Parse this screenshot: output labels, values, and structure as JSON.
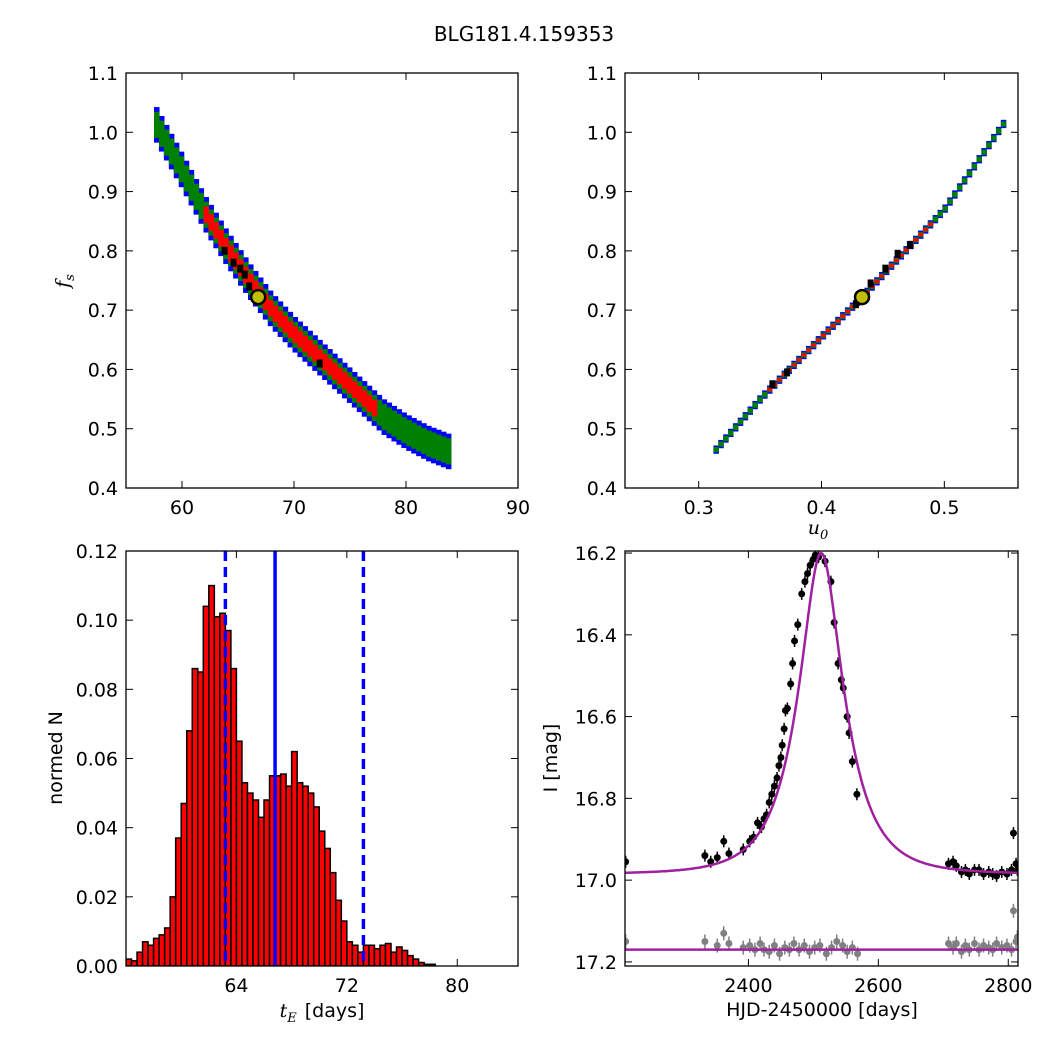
{
  "title": "BLG181.4.159353",
  "colors": {
    "blue": "#0000ff",
    "green": "#008000",
    "red": "#ff0000",
    "black": "#000000",
    "marker_edge": "#000000",
    "marker_face": "#bfbf00",
    "fit": "#a020a0",
    "resid": "#808080"
  },
  "chart_data": [
    {
      "id": "panel_tE_fs",
      "type": "heatmap",
      "description_levels": [
        "blue",
        "green",
        "red",
        "black"
      ],
      "xlabel": "",
      "ylabel": "f_s",
      "xlim": [
        55,
        90
      ],
      "ylim": [
        0.4,
        1.1
      ],
      "xticks": [
        60,
        70,
        80,
        90
      ],
      "yticks": [
        0.4,
        0.5,
        0.6,
        0.7,
        0.8,
        0.9,
        1.0,
        1.1
      ],
      "band_center": [
        [
          57.5,
          1.02
        ],
        [
          60,
          0.935
        ],
        [
          62,
          0.865
        ],
        [
          64,
          0.805
        ],
        [
          66,
          0.75
        ],
        [
          68,
          0.7
        ],
        [
          70,
          0.66
        ],
        [
          72,
          0.625
        ],
        [
          74,
          0.59
        ],
        [
          76,
          0.555
        ],
        [
          78,
          0.52
        ],
        [
          80,
          0.495
        ],
        [
          82,
          0.475
        ],
        [
          84,
          0.46
        ]
      ],
      "band_halfwidth": {
        "blue": 0.03,
        "green": 0.022,
        "red": 0.014
      },
      "red_range": [
        61.5,
        77
      ],
      "black_points": [
        [
          63.8,
          0.8
        ],
        [
          64.6,
          0.78
        ],
        [
          65.2,
          0.77
        ],
        [
          65.6,
          0.76
        ],
        [
          66.0,
          0.74
        ],
        [
          72.3,
          0.61
        ]
      ],
      "best_fit": {
        "x": 66.8,
        "y": 0.722
      }
    },
    {
      "id": "panel_u0_fs",
      "type": "heatmap",
      "xlabel": "u_0",
      "ylabel": "",
      "xlim": [
        0.24,
        0.56
      ],
      "ylim": [
        0.4,
        1.1
      ],
      "xticks": [
        0.3,
        0.4,
        0.5
      ],
      "yticks": [
        0.4,
        0.5,
        0.6,
        0.7,
        0.8,
        0.9,
        1.0,
        1.1
      ],
      "band_center": [
        [
          0.312,
          0.46
        ],
        [
          0.35,
          0.55
        ],
        [
          0.4,
          0.655
        ],
        [
          0.433,
          0.722
        ],
        [
          0.45,
          0.76
        ],
        [
          0.5,
          0.87
        ],
        [
          0.55,
          1.02
        ]
      ],
      "band_halfwidth": {
        "blue": 0.007,
        "green": 0.0045,
        "red": 0.0025
      },
      "red_range": [
        0.355,
        0.49
      ],
      "black_points": [
        [
          0.36,
          0.575
        ],
        [
          0.372,
          0.595
        ],
        [
          0.428,
          0.71
        ],
        [
          0.44,
          0.745
        ],
        [
          0.452,
          0.77
        ],
        [
          0.462,
          0.795
        ],
        [
          0.472,
          0.81
        ]
      ],
      "best_fit": {
        "x": 0.433,
        "y": 0.722
      }
    },
    {
      "id": "panel_hist",
      "type": "bar",
      "xlabel": "t_E",
      "xlabel_unit": "[days]",
      "ylabel": "normed N",
      "xlim": [
        56.0,
        84.4
      ],
      "ylim": [
        0.0,
        0.12
      ],
      "xticks": [
        64,
        72,
        80
      ],
      "yticks": [
        0.0,
        0.02,
        0.04,
        0.06,
        0.08,
        0.1,
        0.12
      ],
      "bin_start": 56.0,
      "bin_width": 0.4,
      "values": [
        0.002,
        0.0015,
        0.004,
        0.007,
        0.006,
        0.008,
        0.009,
        0.011,
        0.02,
        0.037,
        0.047,
        0.068,
        0.086,
        0.085,
        0.104,
        0.11,
        0.101,
        0.102,
        0.097,
        0.086,
        0.065,
        0.053,
        0.05,
        0.048,
        0.043,
        0.048,
        0.055,
        0.055,
        0.0555,
        0.052,
        0.062,
        0.053,
        0.052,
        0.05,
        0.046,
        0.039,
        0.034,
        0.027,
        0.019,
        0.013,
        0.007,
        0.006,
        0.004,
        0.006,
        0.006,
        0.005,
        0.006,
        0.0065,
        0.004,
        0.0055,
        0.0045,
        0.003,
        0.002,
        0.001,
        0.0005,
        0.0005
      ],
      "vline_solid": 66.8,
      "vlines_dashed": [
        63.2,
        73.2
      ]
    },
    {
      "id": "panel_lightcurve",
      "type": "scatter",
      "xlabel": "HJD-2450000 [days]",
      "ylabel": "I [mag]",
      "xlim": [
        2210,
        2815
      ],
      "ylim": [
        17.21,
        16.195
      ],
      "yinverted": true,
      "xticks": [
        2400,
        2600,
        2800
      ],
      "yticks": [
        16.2,
        16.4,
        16.6,
        16.8,
        17.0,
        17.2
      ],
      "model": {
        "t0": 2512,
        "tE": 66.8,
        "u0": 0.433,
        "fs": 0.722,
        "I_base": 16.985
      },
      "resid_offset": 17.17,
      "data_points": [
        [
          2211,
          16.955
        ],
        [
          2333,
          16.94
        ],
        [
          2342,
          16.955
        ],
        [
          2352,
          16.945
        ],
        [
          2362,
          16.905
        ],
        [
          2370,
          16.935
        ],
        [
          2392,
          16.925
        ],
        [
          2402,
          16.905
        ],
        [
          2408,
          16.895
        ],
        [
          2414,
          16.86
        ],
        [
          2420,
          16.87
        ],
        [
          2424,
          16.85
        ],
        [
          2428,
          16.84
        ],
        [
          2432,
          16.81
        ],
        [
          2436,
          16.79
        ],
        [
          2440,
          16.77
        ],
        [
          2444,
          16.75
        ],
        [
          2447,
          16.72
        ],
        [
          2450,
          16.7
        ],
        [
          2452,
          16.67
        ],
        [
          2455,
          16.63
        ],
        [
          2457,
          16.585
        ],
        [
          2460,
          16.58
        ],
        [
          2465,
          16.52
        ],
        [
          2468,
          16.47
        ],
        [
          2471,
          16.415
        ],
        [
          2476,
          16.375
        ],
        [
          2482,
          16.3
        ],
        [
          2487,
          16.27
        ],
        [
          2491,
          16.25
        ],
        [
          2495,
          16.23
        ],
        [
          2500,
          16.215
        ],
        [
          2503,
          16.205
        ],
        [
          2508,
          16.21
        ],
        [
          2518,
          16.22
        ],
        [
          2527,
          16.27
        ],
        [
          2532,
          16.37
        ],
        [
          2538,
          16.47
        ],
        [
          2543,
          16.51
        ],
        [
          2546,
          16.53
        ],
        [
          2552,
          16.6
        ],
        [
          2555,
          16.64
        ],
        [
          2560,
          16.71
        ],
        [
          2567,
          16.79
        ],
        [
          2708,
          16.96
        ],
        [
          2715,
          16.955
        ],
        [
          2720,
          16.965
        ],
        [
          2728,
          16.98
        ],
        [
          2734,
          16.975
        ],
        [
          2740,
          16.985
        ],
        [
          2748,
          16.975
        ],
        [
          2755,
          16.975
        ],
        [
          2762,
          16.985
        ],
        [
          2770,
          16.98
        ],
        [
          2776,
          16.985
        ],
        [
          2782,
          16.99
        ],
        [
          2790,
          16.98
        ],
        [
          2798,
          16.985
        ],
        [
          2805,
          16.975
        ],
        [
          2808,
          16.885
        ],
        [
          2812,
          16.96
        ],
        [
          2814,
          16.975
        ]
      ],
      "resid_points": [
        [
          2211,
          17.15
        ],
        [
          2333,
          17.15
        ],
        [
          2352,
          17.16
        ],
        [
          2362,
          17.13
        ],
        [
          2370,
          17.155
        ],
        [
          2392,
          17.165
        ],
        [
          2402,
          17.16
        ],
        [
          2410,
          17.17
        ],
        [
          2418,
          17.155
        ],
        [
          2424,
          17.17
        ],
        [
          2432,
          17.175
        ],
        [
          2440,
          17.16
        ],
        [
          2448,
          17.18
        ],
        [
          2456,
          17.165
        ],
        [
          2463,
          17.17
        ],
        [
          2470,
          17.155
        ],
        [
          2478,
          17.17
        ],
        [
          2486,
          17.16
        ],
        [
          2494,
          17.175
        ],
        [
          2502,
          17.165
        ],
        [
          2510,
          17.16
        ],
        [
          2520,
          17.18
        ],
        [
          2528,
          17.165
        ],
        [
          2536,
          17.15
        ],
        [
          2545,
          17.16
        ],
        [
          2552,
          17.175
        ],
        [
          2560,
          17.165
        ],
        [
          2568,
          17.18
        ],
        [
          2708,
          17.155
        ],
        [
          2715,
          17.165
        ],
        [
          2720,
          17.155
        ],
        [
          2728,
          17.175
        ],
        [
          2734,
          17.16
        ],
        [
          2740,
          17.17
        ],
        [
          2748,
          17.155
        ],
        [
          2755,
          17.17
        ],
        [
          2762,
          17.16
        ],
        [
          2770,
          17.165
        ],
        [
          2776,
          17.17
        ],
        [
          2782,
          17.155
        ],
        [
          2790,
          17.165
        ],
        [
          2798,
          17.16
        ],
        [
          2805,
          17.17
        ],
        [
          2808,
          17.075
        ],
        [
          2812,
          17.15
        ],
        [
          2814,
          17.14
        ]
      ]
    }
  ]
}
